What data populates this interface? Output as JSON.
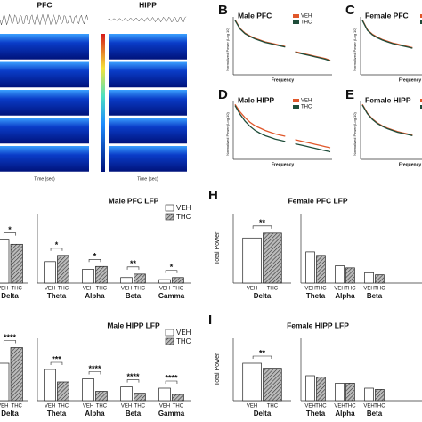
{
  "chart_data": [
    {
      "type": "spectrogram",
      "titles": [
        "PFC",
        "HIPP"
      ],
      "xlabel": "Time (sec)"
    },
    {
      "type": "line",
      "panel": "B",
      "title": "Male PFC",
      "xlabel": "Frequency",
      "ylabel": "Normalized Power (Log 10)",
      "ylim": [
        0,
        1
      ],
      "series": [
        {
          "name": "VEH",
          "color": "#e0572a",
          "values": [
            0.95,
            0.8,
            0.72,
            0.67,
            0.63,
            0.6,
            0.57,
            0.55,
            0.53,
            0.51,
            0.49,
            null,
            0.4,
            0.38,
            0.36,
            0.34,
            0.32,
            0.3,
            0.28,
            0.25
          ]
        },
        {
          "name": "THC",
          "color": "#1f4d3a",
          "values": [
            0.94,
            0.79,
            0.71,
            0.66,
            0.62,
            0.59,
            0.56,
            0.54,
            0.52,
            0.5,
            0.48,
            null,
            0.39,
            0.37,
            0.35,
            0.33,
            0.31,
            0.29,
            0.27,
            0.24
          ]
        }
      ]
    },
    {
      "type": "line",
      "panel": "C",
      "title": "Female PFC",
      "xlabel": "Frequency",
      "ylabel": "Normalized Power (Log 10)",
      "ylim": [
        0,
        1
      ],
      "series": [
        {
          "name": "VEH",
          "color": "#e0572a",
          "values": [
            0.95,
            0.78,
            0.7,
            0.65,
            0.61,
            0.58,
            0.55,
            0.53,
            0.51,
            0.49,
            0.47,
            null,
            0.39,
            0.37,
            0.35,
            0.33,
            0.31,
            0.29,
            0.27,
            0.24
          ]
        },
        {
          "name": "THC",
          "color": "#1f4d3a",
          "values": [
            0.94,
            0.77,
            0.69,
            0.64,
            0.6,
            0.57,
            0.54,
            0.52,
            0.5,
            0.48,
            0.46,
            null,
            0.38,
            0.36,
            0.34,
            0.32,
            0.3,
            0.28,
            0.26,
            0.23
          ]
        }
      ]
    },
    {
      "type": "line",
      "panel": "D",
      "title": "Male HIPP",
      "xlabel": "Frequency",
      "ylabel": "Normalized Power (Log 10)",
      "ylim": [
        0,
        1
      ],
      "series": [
        {
          "name": "VEH",
          "color": "#e0572a",
          "values": [
            0.95,
            0.82,
            0.72,
            0.64,
            0.58,
            0.54,
            0.5,
            0.47,
            0.44,
            0.42,
            0.4,
            null,
            0.34,
            0.32,
            0.3,
            0.28,
            0.26,
            0.24,
            0.22,
            0.2
          ]
        },
        {
          "name": "THC",
          "color": "#1f4d3a",
          "values": [
            0.93,
            0.78,
            0.66,
            0.57,
            0.5,
            0.45,
            0.41,
            0.38,
            0.35,
            0.33,
            0.31,
            null,
            0.27,
            0.25,
            0.23,
            0.21,
            0.19,
            0.17,
            0.15,
            0.13
          ]
        }
      ]
    },
    {
      "type": "line",
      "panel": "E",
      "title": "Female HIPP",
      "xlabel": "Frequency",
      "ylabel": "Normalized Power (Log 10)",
      "ylim": [
        0,
        1
      ],
      "series": [
        {
          "name": "VEH",
          "color": "#e0572a",
          "values": [
            0.95,
            0.8,
            0.7,
            0.63,
            0.58,
            0.54,
            0.51,
            0.48,
            0.46,
            0.44,
            0.42,
            null,
            0.35,
            0.33,
            0.31,
            0.29,
            0.27,
            0.25,
            0.23,
            0.21
          ]
        },
        {
          "name": "THC",
          "color": "#1f4d3a",
          "values": [
            0.94,
            0.79,
            0.69,
            0.62,
            0.57,
            0.53,
            0.5,
            0.47,
            0.45,
            0.43,
            0.41,
            null,
            0.34,
            0.32,
            0.3,
            0.28,
            0.26,
            0.24,
            0.22,
            0.2
          ]
        }
      ]
    },
    {
      "type": "bar",
      "title": "Male PFC LFP",
      "ylim": [
        0,
        1
      ],
      "series_names": [
        "VEH",
        "THC"
      ],
      "subplots": [
        {
          "categories": [
            "Delta"
          ],
          "ylim": [
            0,
            1
          ],
          "VEH": [
            0.62
          ],
          "THC": [
            0.56
          ],
          "annotations": [
            "*"
          ]
        },
        {
          "categories": [
            "Theta",
            "Alpha",
            "Beta",
            "Gamma"
          ],
          "VEH": [
            0.31,
            0.2,
            0.08,
            0.05
          ],
          "THC": [
            0.4,
            0.24,
            0.13,
            0.08
          ],
          "annotations": [
            "*",
            "*",
            "**",
            "*"
          ]
        }
      ]
    },
    {
      "type": "bar",
      "panel": "H",
      "title": "Female PFC LFP",
      "ylabel": "Total Power",
      "ylim": [
        0,
        1
      ],
      "series_names": [
        "VEH",
        "THC"
      ],
      "subplots": [
        {
          "categories": [
            "Delta"
          ],
          "VEH": [
            0.65
          ],
          "THC": [
            0.72
          ],
          "annotations": [
            "**"
          ]
        },
        {
          "categories": [
            "Theta",
            "Alpha",
            "Beta"
          ],
          "VEH": [
            0.45,
            0.25,
            0.15
          ],
          "THC": [
            0.4,
            0.22,
            0.12
          ],
          "annotations": [
            null,
            null,
            null
          ]
        }
      ]
    },
    {
      "type": "bar",
      "title": "Male HIPP LFP",
      "ylim": [
        0,
        1
      ],
      "series_names": [
        "VEH",
        "THC"
      ],
      "subplots": [
        {
          "categories": [
            "Delta"
          ],
          "VEH": [
            0.6
          ],
          "THC": [
            0.85
          ],
          "annotations": [
            "****"
          ]
        },
        {
          "categories": [
            "Theta",
            "Alpha",
            "Beta",
            "Gamma"
          ],
          "VEH": [
            0.5,
            0.35,
            0.22,
            0.2
          ],
          "THC": [
            0.3,
            0.15,
            0.12,
            0.1
          ],
          "annotations": [
            "***",
            "****",
            "****",
            "****"
          ]
        }
      ]
    },
    {
      "type": "bar",
      "panel": "I",
      "title": "Female HIPP LFP",
      "ylabel": "Total Power",
      "ylim": [
        0,
        1
      ],
      "series_names": [
        "VEH",
        "THC"
      ],
      "subplots": [
        {
          "categories": [
            "Delta"
          ],
          "VEH": [
            0.6
          ],
          "THC": [
            0.52
          ],
          "annotations": [
            "**"
          ]
        },
        {
          "categories": [
            "Theta",
            "Alpha",
            "Beta"
          ],
          "VEH": [
            0.4,
            0.28,
            0.2
          ],
          "THC": [
            0.38,
            0.28,
            0.18
          ],
          "annotations": [
            null,
            null,
            null
          ]
        }
      ]
    }
  ]
}
